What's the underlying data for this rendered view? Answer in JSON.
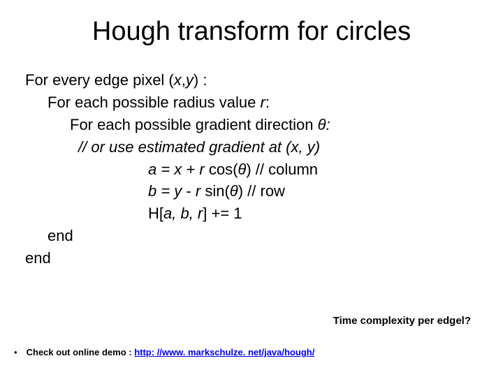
{
  "title": "Hough transform for circles",
  "algo": {
    "line1_a": "For every edge pixel (",
    "line1_b": "x",
    "line1_c": ",",
    "line1_d": "y",
    "line1_e": ") :",
    "line2_a": "For each possible radius value ",
    "line2_b": "r",
    "line2_c": ":",
    "line3_a": "For each possible gradient direction ",
    "line3_b": "θ:",
    "line4": "// or use estimated gradient at (x, y)",
    "line5_a": "a = x + r ",
    "line5_b": "cos(",
    "line5_c": "θ",
    "line5_d": ") // column",
    "line6_a": "b = y ",
    "line6_b": "- ",
    "line6_c": "r ",
    "line6_d": "sin(",
    "line6_e": "θ",
    "line6_f": ")  // row",
    "line7_a": "H[",
    "line7_b": "a, b, r",
    "line7_c": "] += 1",
    "end1": "end",
    "end2": "end"
  },
  "complexity": "Time complexity per edgel?",
  "footer": {
    "bullet": "•",
    "text": "Check out online demo : ",
    "link_text": "http: //www. markschulze. net/java/hough/",
    "link_href": "http://www.markschulze.net/java/hough/"
  }
}
